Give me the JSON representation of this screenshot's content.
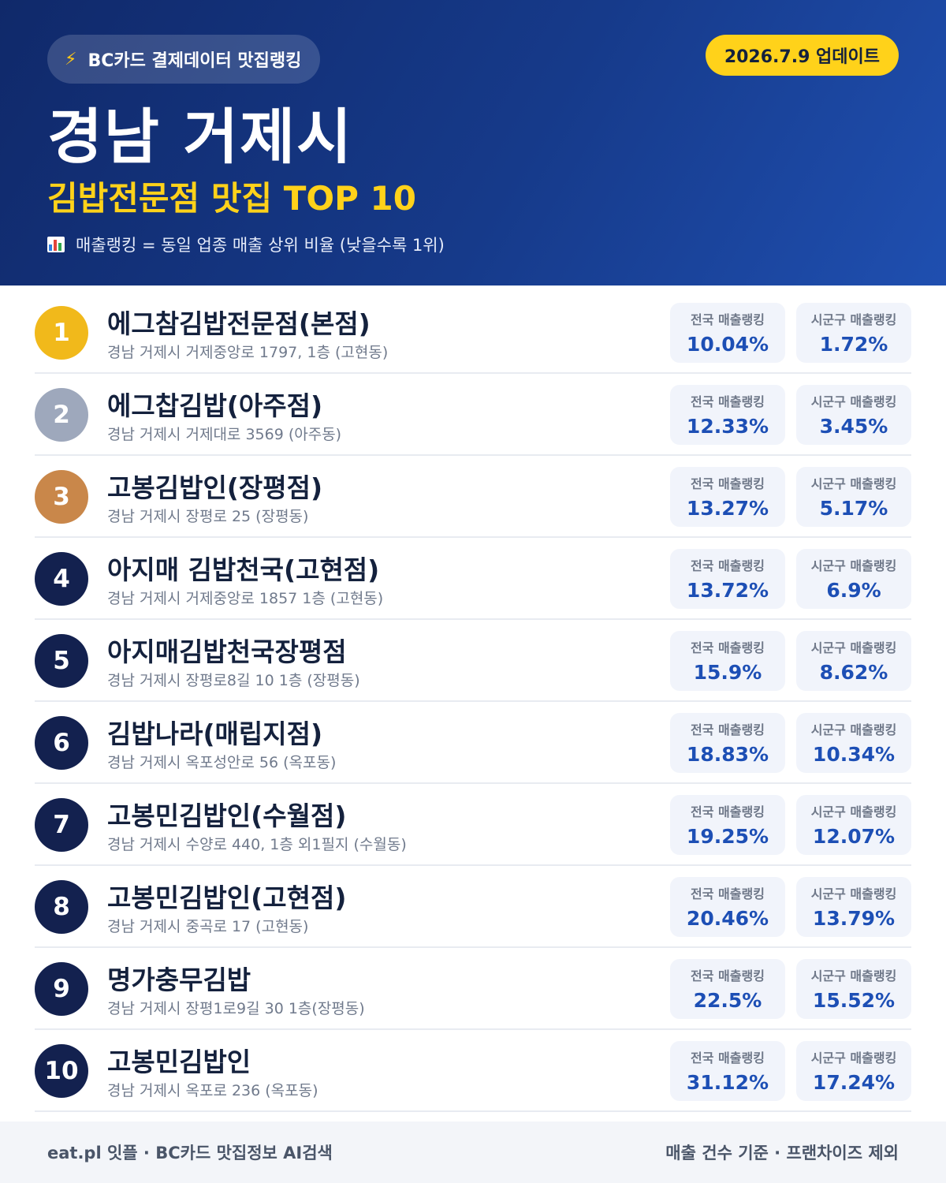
{
  "header": {
    "source_label": "BC카드 결제데이터 맛집랭킹",
    "update_label": "2026.7.9 업데이트",
    "region": "경남 거제시",
    "category": "김밥전문점 맛집 TOP 10",
    "note": "매출랭킹 = 동일 업종 매출 상위 비율 (낮을수록 1위)"
  },
  "labels": {
    "national": "전국 매출랭킹",
    "local": "시군구 매출랭킹"
  },
  "restaurants": [
    {
      "rank": "1",
      "name": "에그참김밥전문점(본점)",
      "address": "경남 거제시 거제중앙로 1797, 1층 (고현동)",
      "national": "10.04%",
      "local": "1.72%"
    },
    {
      "rank": "2",
      "name": "에그찹김밥(아주점)",
      "address": "경남 거제시 거제대로 3569 (아주동)",
      "national": "12.33%",
      "local": "3.45%"
    },
    {
      "rank": "3",
      "name": "고봉김밥인(장평점)",
      "address": "경남 거제시 장평로 25 (장평동)",
      "national": "13.27%",
      "local": "5.17%"
    },
    {
      "rank": "4",
      "name": "아지매 김밥천국(고현점)",
      "address": "경남 거제시 거제중앙로 1857 1층 (고현동)",
      "national": "13.72%",
      "local": "6.9%"
    },
    {
      "rank": "5",
      "name": "아지매김밥천국장평점",
      "address": "경남 거제시 장평로8길 10 1층 (장평동)",
      "national": "15.9%",
      "local": "8.62%"
    },
    {
      "rank": "6",
      "name": "김밥나라(매립지점)",
      "address": "경남 거제시 옥포성안로 56 (옥포동)",
      "national": "18.83%",
      "local": "10.34%"
    },
    {
      "rank": "7",
      "name": "고봉민김밥인(수월점)",
      "address": "경남 거제시 수양로 440, 1층 외1필지 (수월동)",
      "national": "19.25%",
      "local": "12.07%"
    },
    {
      "rank": "8",
      "name": "고봉민김밥인(고현점)",
      "address": "경남 거제시 중곡로 17 (고현동)",
      "national": "20.46%",
      "local": "13.79%"
    },
    {
      "rank": "9",
      "name": "명가충무김밥",
      "address": "경남 거제시 장평1로9길 30 1층(장평동)",
      "national": "22.5%",
      "local": "15.52%"
    },
    {
      "rank": "10",
      "name": "고봉민김밥인",
      "address": "경남 거제시 옥포로 236 (옥포동)",
      "national": "31.12%",
      "local": "17.24%"
    }
  ],
  "footer": {
    "left": "eat.pl 잇플 · BC카드 맛집정보 AI검색",
    "right": "매출 건수 기준 · 프랜차이즈 제외"
  },
  "colors": {
    "header_dark": "#10296a",
    "header_light": "#1f4fb0",
    "accent_yellow": "#ffd21a",
    "rank_gold": "#f1b91b",
    "rank_silver": "#9ea8bc",
    "rank_bronze": "#c9874a",
    "rank_default": "#13214f",
    "value_blue": "#1d4fb5"
  }
}
